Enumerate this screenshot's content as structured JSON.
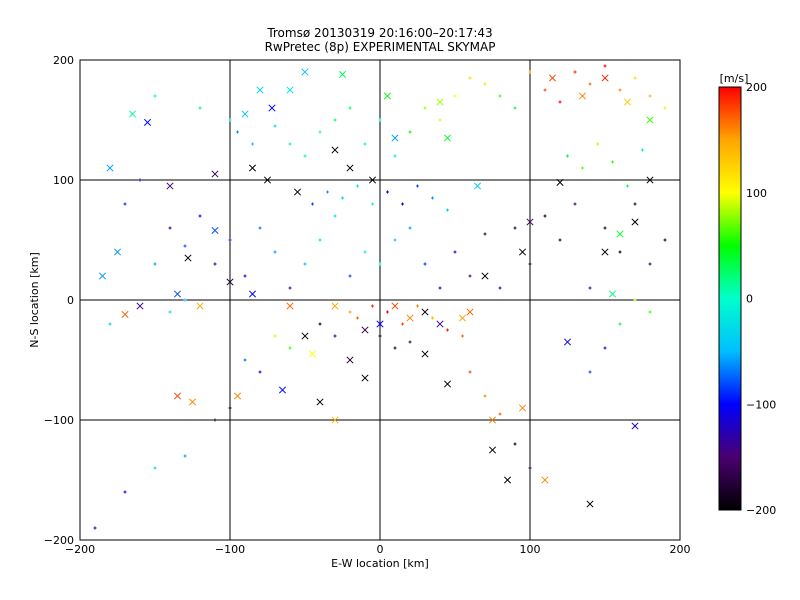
{
  "chart_data": {
    "type": "scatter",
    "title": "Tromsø 20130319 20:16:00–20:17:43",
    "subtitle": "RwPretec (8p) EXPERIMENTAL SKYMAP",
    "xlabel": "E-W location [km]",
    "ylabel": "N-S location [km]",
    "xlim": [
      -200,
      200
    ],
    "ylim": [
      -200,
      200
    ],
    "xticks": [
      "−200",
      "−100",
      "0",
      "100",
      "200"
    ],
    "yticks": [
      "−200",
      "−100",
      "0",
      "100",
      "200"
    ],
    "grid": true,
    "colorbar": {
      "label": "[m/s]",
      "min": -200,
      "max": 200,
      "ticks": [
        "200",
        "100",
        "0",
        "−100",
        "−200"
      ],
      "colormap": [
        "#000000",
        "#4a0070",
        "#0000ff",
        "#00bfff",
        "#00ffcc",
        "#00ff00",
        "#ffff00",
        "#ffa500",
        "#ff0000"
      ]
    },
    "series": [
      {
        "marker": "x",
        "points": [
          [
            -180,
            110,
            -60
          ],
          [
            -165,
            155,
            10
          ],
          [
            -155,
            148,
            -100
          ],
          [
            -140,
            95,
            -150
          ],
          [
            -128,
            35,
            -200
          ],
          [
            -110,
            58,
            -80
          ],
          [
            -95,
            -80,
            160
          ],
          [
            -125,
            -85,
            160
          ],
          [
            -65,
            -75,
            -100
          ],
          [
            -40,
            -85,
            -200
          ],
          [
            -45,
            -45,
            100
          ],
          [
            -30,
            -100,
            140
          ],
          [
            -60,
            175,
            -20
          ],
          [
            -80,
            175,
            -40
          ],
          [
            -72,
            160,
            -100
          ],
          [
            -50,
            190,
            -40
          ],
          [
            -25,
            188,
            30
          ],
          [
            -90,
            155,
            -40
          ],
          [
            -110,
            105,
            -160
          ],
          [
            -85,
            110,
            -200
          ],
          [
            -75,
            100,
            -200
          ],
          [
            -55,
            90,
            -200
          ],
          [
            -30,
            125,
            -200
          ],
          [
            -20,
            110,
            -200
          ],
          [
            -5,
            100,
            -200
          ],
          [
            10,
            135,
            -60
          ],
          [
            5,
            170,
            50
          ],
          [
            40,
            165,
            80
          ],
          [
            45,
            135,
            40
          ],
          [
            65,
            95,
            -40
          ],
          [
            75,
            -100,
            160
          ],
          [
            75,
            -125,
            -200
          ],
          [
            95,
            -90,
            160
          ],
          [
            140,
            -170,
            -200
          ],
          [
            110,
            -150,
            160
          ],
          [
            115,
            185,
            180
          ],
          [
            135,
            170,
            160
          ],
          [
            150,
            185,
            190
          ],
          [
            165,
            165,
            130
          ],
          [
            180,
            150,
            60
          ],
          [
            120,
            98,
            -200
          ],
          [
            100,
            65,
            -150
          ],
          [
            150,
            40,
            -200
          ],
          [
            170,
            65,
            -200
          ],
          [
            180,
            100,
            -200
          ],
          [
            160,
            55,
            40
          ],
          [
            155,
            5,
            20
          ],
          [
            -100,
            15,
            -180
          ],
          [
            -120,
            -5,
            150
          ],
          [
            -85,
            5,
            -100
          ],
          [
            -60,
            -5,
            170
          ],
          [
            -30,
            -5,
            150
          ],
          [
            -10,
            -25,
            -170
          ],
          [
            0,
            -20,
            -100
          ],
          [
            10,
            -5,
            180
          ],
          [
            20,
            -15,
            160
          ],
          [
            30,
            -10,
            -200
          ],
          [
            40,
            -20,
            -140
          ],
          [
            55,
            -15,
            150
          ],
          [
            60,
            -10,
            170
          ],
          [
            -135,
            -80,
            180
          ],
          [
            -185,
            20,
            -60
          ],
          [
            -175,
            40,
            -60
          ],
          [
            -170,
            -12,
            170
          ],
          [
            -135,
            5,
            -80
          ],
          [
            -160,
            -5,
            -140
          ],
          [
            -50,
            -30,
            -200
          ],
          [
            -20,
            -50,
            -180
          ],
          [
            -10,
            -65,
            -200
          ],
          [
            30,
            -45,
            -200
          ],
          [
            45,
            -70,
            -200
          ],
          [
            85,
            -150,
            -200
          ],
          [
            170,
            -105,
            -120
          ],
          [
            95,
            40,
            -200
          ],
          [
            70,
            20,
            -200
          ],
          [
            125,
            -35,
            -110
          ]
        ]
      },
      {
        "marker": "+",
        "points": [
          [
            -150,
            170,
            10
          ],
          [
            -120,
            160,
            20
          ],
          [
            -100,
            150,
            -20
          ],
          [
            -95,
            140,
            -60
          ],
          [
            -85,
            130,
            -40
          ],
          [
            -70,
            145,
            -30
          ],
          [
            -60,
            130,
            -10
          ],
          [
            -50,
            120,
            10
          ],
          [
            -40,
            140,
            0
          ],
          [
            -30,
            150,
            20
          ],
          [
            -20,
            160,
            30
          ],
          [
            -10,
            130,
            10
          ],
          [
            0,
            150,
            0
          ],
          [
            10,
            120,
            -20
          ],
          [
            20,
            140,
            50
          ],
          [
            30,
            160,
            80
          ],
          [
            40,
            150,
            90
          ],
          [
            50,
            170,
            100
          ],
          [
            60,
            185,
            120
          ],
          [
            70,
            180,
            90
          ],
          [
            80,
            170,
            60
          ],
          [
            90,
            160,
            40
          ],
          [
            100,
            190,
            150
          ],
          [
            110,
            175,
            180
          ],
          [
            120,
            165,
            200
          ],
          [
            130,
            190,
            190
          ],
          [
            140,
            180,
            170
          ],
          [
            150,
            195,
            200
          ],
          [
            160,
            175,
            160
          ],
          [
            170,
            185,
            120
          ],
          [
            180,
            170,
            140
          ],
          [
            190,
            160,
            110
          ],
          [
            -140,
            60,
            -120
          ],
          [
            -130,
            45,
            -80
          ],
          [
            -120,
            70,
            -100
          ],
          [
            -110,
            30,
            -140
          ],
          [
            -100,
            50,
            -90
          ],
          [
            -90,
            20,
            -110
          ],
          [
            -80,
            60,
            -70
          ],
          [
            -70,
            40,
            -60
          ],
          [
            -60,
            10,
            -130
          ],
          [
            -50,
            30,
            -50
          ],
          [
            -40,
            50,
            -30
          ],
          [
            -30,
            70,
            -20
          ],
          [
            -20,
            20,
            -80
          ],
          [
            -10,
            40,
            -10
          ],
          [
            0,
            30,
            0
          ],
          [
            10,
            50,
            -40
          ],
          [
            20,
            60,
            -60
          ],
          [
            30,
            30,
            -90
          ],
          [
            40,
            10,
            -120
          ],
          [
            50,
            40,
            -100
          ],
          [
            60,
            20,
            -150
          ],
          [
            70,
            55,
            -170
          ],
          [
            80,
            10,
            -130
          ],
          [
            90,
            60,
            -180
          ],
          [
            100,
            30,
            -190
          ],
          [
            110,
            70,
            -200
          ],
          [
            120,
            50,
            -180
          ],
          [
            130,
            80,
            -160
          ],
          [
            140,
            10,
            -140
          ],
          [
            150,
            60,
            -190
          ],
          [
            160,
            40,
            -200
          ],
          [
            170,
            80,
            -180
          ],
          [
            180,
            30,
            -160
          ],
          [
            190,
            50,
            -190
          ],
          [
            -180,
            -20,
            -40
          ],
          [
            -170,
            80,
            -90
          ],
          [
            -160,
            100,
            -120
          ],
          [
            -150,
            30,
            -60
          ],
          [
            -140,
            -10,
            -30
          ],
          [
            -130,
            0,
            -50
          ],
          [
            -20,
            -10,
            150
          ],
          [
            -15,
            -15,
            170
          ],
          [
            -5,
            -5,
            190
          ],
          [
            5,
            -10,
            200
          ],
          [
            15,
            -20,
            180
          ],
          [
            25,
            -5,
            160
          ],
          [
            35,
            -15,
            140
          ],
          [
            45,
            -25,
            190
          ],
          [
            55,
            -30,
            170
          ],
          [
            0,
            -30,
            -200
          ],
          [
            10,
            -40,
            -180
          ],
          [
            20,
            -35,
            -160
          ],
          [
            -30,
            -30,
            -140
          ],
          [
            -40,
            -20,
            -200
          ],
          [
            60,
            -60,
            180
          ],
          [
            70,
            -80,
            160
          ],
          [
            80,
            -95,
            170
          ],
          [
            90,
            -120,
            -200
          ],
          [
            100,
            -140,
            -180
          ],
          [
            -60,
            -40,
            60
          ],
          [
            -70,
            -30,
            90
          ],
          [
            -80,
            -60,
            -100
          ],
          [
            -90,
            -50,
            -70
          ],
          [
            -100,
            -90,
            -200
          ],
          [
            -110,
            -100,
            -180
          ],
          [
            -130,
            -130,
            -60
          ],
          [
            -150,
            -140,
            -30
          ],
          [
            -170,
            -160,
            -100
          ],
          [
            -190,
            -190,
            -140
          ],
          [
            140,
            -60,
            -80
          ],
          [
            150,
            -40,
            -120
          ],
          [
            160,
            -20,
            40
          ],
          [
            170,
            0,
            80
          ],
          [
            180,
            -10,
            60
          ],
          [
            125,
            120,
            40
          ],
          [
            135,
            110,
            70
          ],
          [
            145,
            130,
            90
          ],
          [
            155,
            115,
            60
          ],
          [
            165,
            95,
            30
          ],
          [
            175,
            125,
            -10
          ],
          [
            -45,
            80,
            -80
          ],
          [
            -35,
            90,
            -60
          ],
          [
            -25,
            85,
            -40
          ],
          [
            -15,
            95,
            -20
          ],
          [
            -5,
            80,
            0
          ],
          [
            5,
            90,
            -100
          ],
          [
            15,
            80,
            -120
          ],
          [
            25,
            95,
            -80
          ],
          [
            35,
            85,
            -60
          ],
          [
            45,
            75,
            -40
          ]
        ]
      }
    ]
  }
}
